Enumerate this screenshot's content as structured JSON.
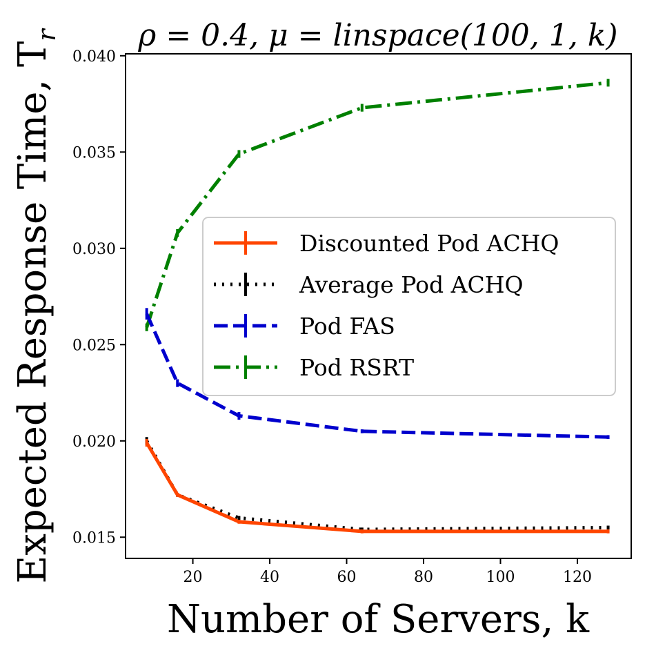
{
  "chart_data": {
    "type": "line",
    "title": "ρ = 0.4, μ = linspace(100, 1, k)",
    "xlabel": "Number of Servers, k",
    "ylabel": "Expected Response Time, T",
    "ylabel_subscript": "r",
    "xlim": [
      2.5,
      134
    ],
    "ylim": [
      0.0139,
      0.0401
    ],
    "x_ticks": [
      20,
      40,
      60,
      80,
      100,
      120
    ],
    "x_tick_labels": [
      "20",
      "40",
      "60",
      "80",
      "100",
      "120"
    ],
    "y_ticks": [
      0.015,
      0.02,
      0.025,
      0.03,
      0.035,
      0.04
    ],
    "y_tick_labels": [
      "0.015",
      "0.020",
      "0.025",
      "0.030",
      "0.035",
      "0.040"
    ],
    "grid": false,
    "legend_position": "center-right",
    "x": [
      8,
      16,
      32,
      64,
      128
    ],
    "series": [
      {
        "name": "Discounted Pod ACHQ",
        "color": "#ff4500",
        "dash": "solid",
        "values": [
          0.0199,
          0.0172,
          0.0158,
          0.0153,
          0.0153
        ],
        "err": [
          0.0002,
          0.0001,
          0.0001,
          0.0001,
          0.0001
        ]
      },
      {
        "name": "Average Pod ACHQ",
        "color": "#000000",
        "dash": "dotted",
        "values": [
          0.02,
          0.0172,
          0.016,
          0.0154,
          0.0155
        ],
        "err": [
          0.0002,
          0.0001,
          0.0001,
          0.0001,
          0.0001
        ]
      },
      {
        "name": "Pod FAS",
        "color": "#0000cd",
        "dash": "dashed",
        "values": [
          0.0266,
          0.023,
          0.0213,
          0.0205,
          0.0202
        ],
        "err": [
          0.0003,
          0.0002,
          0.0002,
          0.0001,
          0.0001
        ]
      },
      {
        "name": "Pod RSRT",
        "color": "#008000",
        "dash": "dashdot",
        "values": [
          0.0259,
          0.0308,
          0.0349,
          0.0373,
          0.0386
        ],
        "err": [
          0.0002,
          0.0002,
          0.0002,
          0.0002,
          0.0002
        ]
      }
    ]
  }
}
